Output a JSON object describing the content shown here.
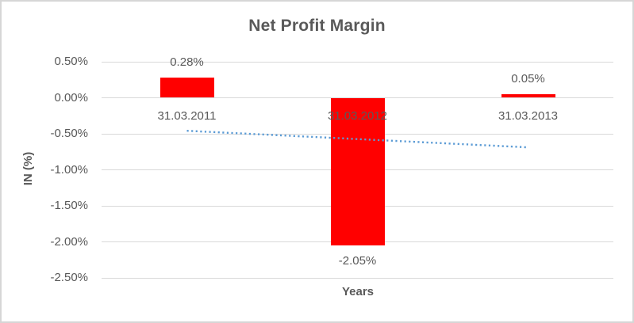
{
  "chart_data": {
    "type": "bar",
    "title": "Net Profit Margin",
    "xlabel": "Years",
    "ylabel": "IN (%)",
    "categories": [
      "31.03.2011",
      "31.03.2012",
      "31.03.2013"
    ],
    "values": [
      0.28,
      -2.05,
      0.05
    ],
    "data_labels": [
      "0.28%",
      "-2.05%",
      "0.05%"
    ],
    "ylim": [
      -2.5,
      0.5
    ],
    "yticks": [
      0.5,
      0.0,
      -0.5,
      -1.0,
      -1.5,
      -2.0,
      -2.5
    ],
    "ytick_labels": [
      "0.50%",
      "0.00%",
      "-0.50%",
      "-1.00%",
      "-1.50%",
      "-2.00%",
      "-2.50%"
    ],
    "grid": true,
    "legend": "none",
    "bar_color": "#FF0000",
    "gridline_color": "#D9D9D9",
    "text_color": "#595959",
    "background": "#FFFFFF",
    "border_color": "#D6D6D6",
    "trendline": {
      "type": "linear",
      "style": "dotted",
      "color": "#5B9BD5"
    }
  }
}
